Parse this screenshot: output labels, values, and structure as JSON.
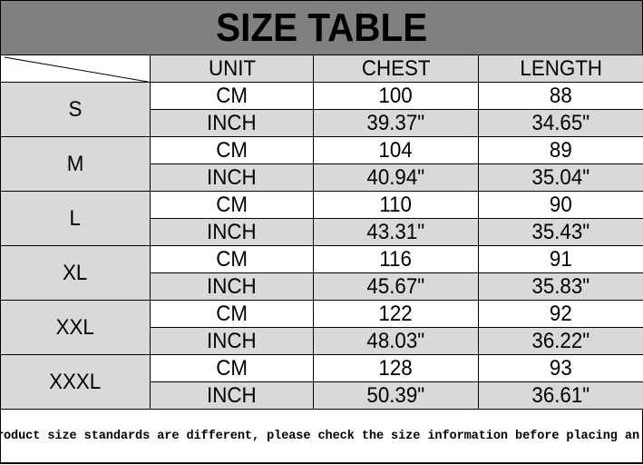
{
  "title": "SIZE TABLE",
  "headers": {
    "unit": "UNIT",
    "chest": "CHEST",
    "length": "LENGTH"
  },
  "colors": {
    "title_bg": "#808080",
    "shaded_cell": "#d9d9d9"
  },
  "rows": [
    {
      "size": "S",
      "cm": {
        "unit": "CM",
        "chest": "100",
        "length": "88"
      },
      "inch": {
        "unit": "INCH",
        "chest": "39.37\"",
        "length": "34.65\""
      }
    },
    {
      "size": "M",
      "cm": {
        "unit": "CM",
        "chest": "104",
        "length": "89"
      },
      "inch": {
        "unit": "INCH",
        "chest": "40.94\"",
        "length": "35.04\""
      }
    },
    {
      "size": "L",
      "cm": {
        "unit": "CM",
        "chest": "110",
        "length": "90"
      },
      "inch": {
        "unit": "INCH",
        "chest": "43.31\"",
        "length": "35.43\""
      }
    },
    {
      "size": "XL",
      "cm": {
        "unit": "CM",
        "chest": "116",
        "length": "91"
      },
      "inch": {
        "unit": "INCH",
        "chest": "45.67\"",
        "length": "35.83\""
      }
    },
    {
      "size": "XXL",
      "cm": {
        "unit": "CM",
        "chest": "122",
        "length": "92"
      },
      "inch": {
        "unit": "INCH",
        "chest": "48.03\"",
        "length": "36.22\""
      }
    },
    {
      "size": "XXXL",
      "cm": {
        "unit": "CM",
        "chest": "128",
        "length": "93"
      },
      "inch": {
        "unit": "INCH",
        "chest": "50.39\"",
        "length": "36.61\""
      }
    }
  ],
  "footer": "Our product size standards are different, please check the size information before placing an order"
}
